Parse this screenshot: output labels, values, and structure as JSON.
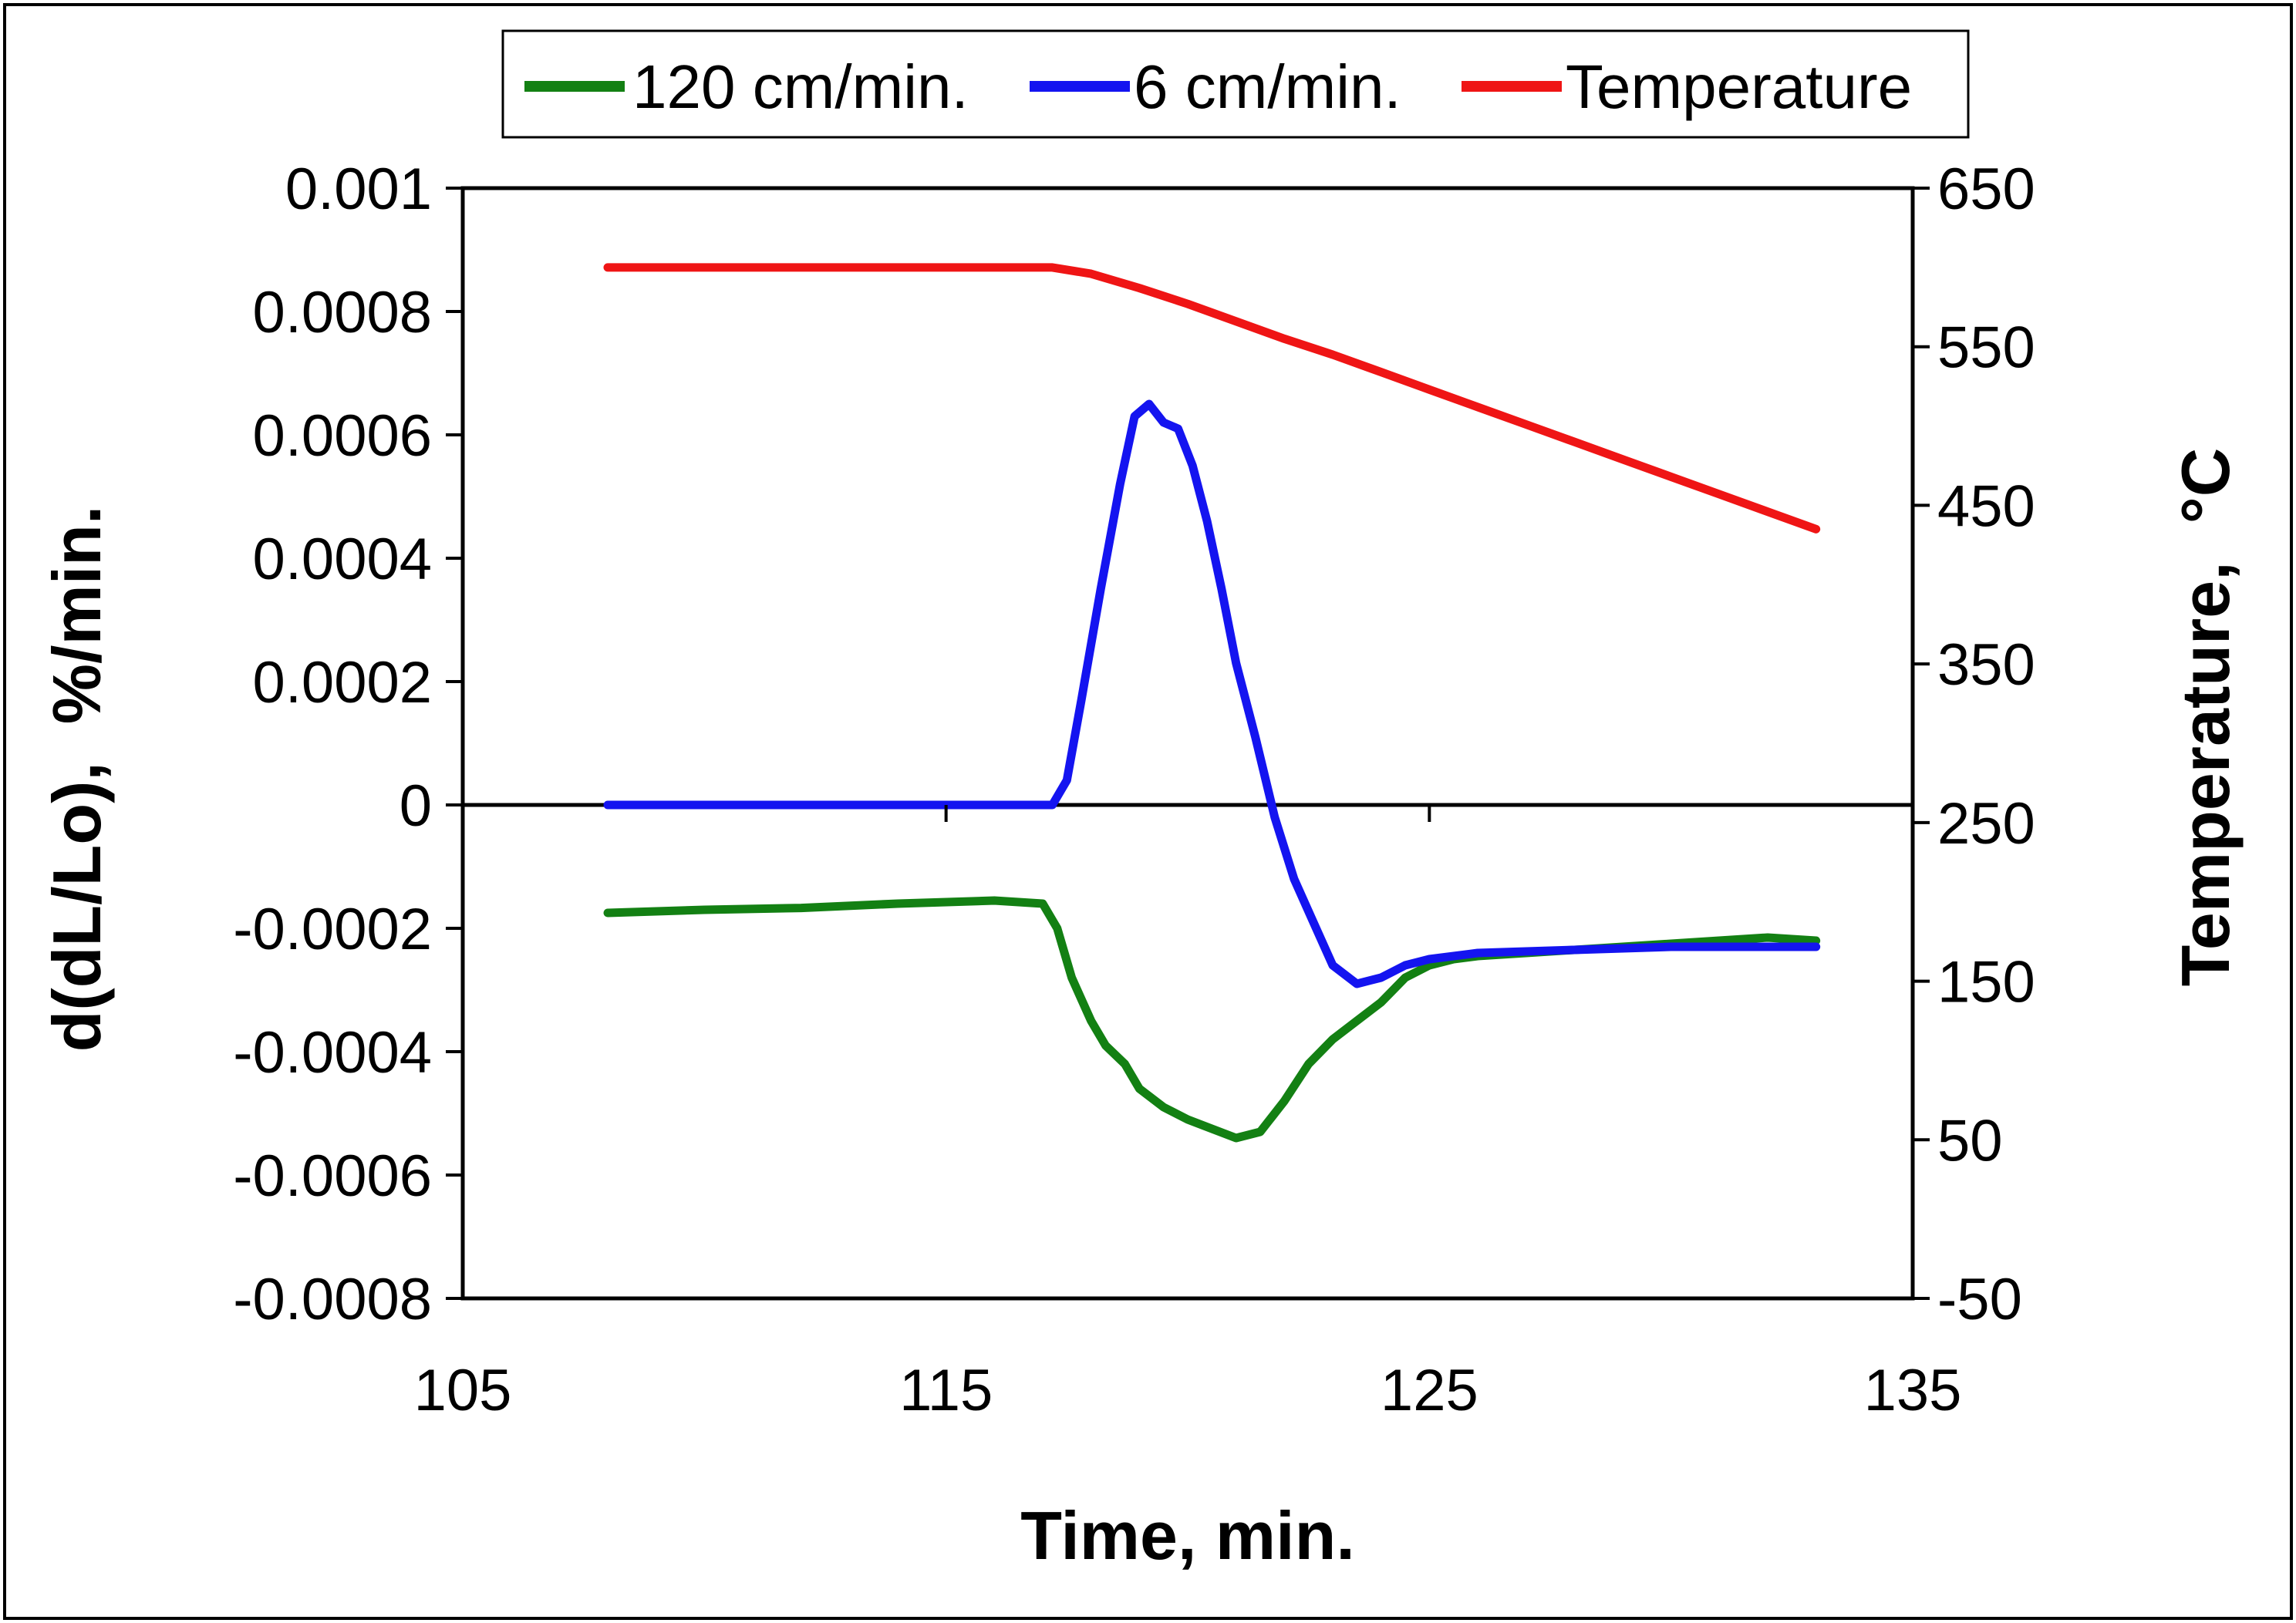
{
  "chart_data": {
    "type": "line",
    "xlabel": "Time, min.",
    "ylabel": "d(dL/Lo),  %/min.",
    "y2label": "Temperature,  °C",
    "xlim": [
      105,
      135
    ],
    "ylim": [
      -0.0008,
      0.001
    ],
    "y2lim": [
      -50,
      650
    ],
    "x_ticks": [
      "105",
      "115",
      "125",
      "135"
    ],
    "y_ticks": [
      "-0.0008",
      "-0.0006",
      "-0.0004",
      "-0.0002",
      "0",
      "0.0002",
      "0.0004",
      "0.0006",
      "0.0008",
      "0.001"
    ],
    "y2_ticks": [
      "-50",
      "50",
      "150",
      "250",
      "350",
      "450",
      "550",
      "650"
    ],
    "legend_position": "top-center",
    "series": [
      {
        "name": "120 cm/min.",
        "color": "#138013",
        "axis": "left",
        "x": [
          108,
          110,
          112,
          114,
          116,
          117,
          117.3,
          117.6,
          118,
          118.3,
          118.7,
          119,
          119.5,
          120,
          120.5,
          121,
          121.5,
          122,
          122.5,
          123,
          123.5,
          124,
          124.5,
          125,
          125.5,
          126,
          127,
          128,
          130,
          132,
          133
        ],
        "y": [
          -0.000175,
          -0.00017,
          -0.000167,
          -0.00016,
          -0.000155,
          -0.00016,
          -0.0002,
          -0.00028,
          -0.00035,
          -0.00039,
          -0.00042,
          -0.00046,
          -0.00049,
          -0.00051,
          -0.000525,
          -0.00054,
          -0.00053,
          -0.00048,
          -0.00042,
          -0.00038,
          -0.00035,
          -0.00032,
          -0.00028,
          -0.00026,
          -0.00025,
          -0.000245,
          -0.00024,
          -0.000235,
          -0.000225,
          -0.000215,
          -0.00022
        ]
      },
      {
        "name": "6 cm/min.",
        "color": "#1414f0",
        "axis": "left",
        "x": [
          108,
          112,
          116,
          117.2,
          117.5,
          117.8,
          118.2,
          118.6,
          118.9,
          119.2,
          119.5,
          119.8,
          120.1,
          120.4,
          120.7,
          121,
          121.4,
          121.8,
          122.2,
          122.6,
          123,
          123.5,
          124,
          124.5,
          125,
          126,
          128,
          130,
          133
        ],
        "y": [
          0,
          0,
          0,
          0,
          4e-05,
          0.00017,
          0.00035,
          0.00052,
          0.00063,
          0.00065,
          0.00062,
          0.00061,
          0.00055,
          0.00046,
          0.00035,
          0.00023,
          0.00011,
          -2e-05,
          -0.00012,
          -0.00019,
          -0.00026,
          -0.00029,
          -0.00028,
          -0.00026,
          -0.00025,
          -0.00024,
          -0.000235,
          -0.00023,
          -0.00023
        ]
      },
      {
        "name": "Temperature",
        "color": "#ef1515",
        "axis": "right",
        "x": [
          108,
          117.2,
          118,
          119,
          120,
          121,
          122,
          123,
          124,
          125,
          126,
          127,
          128,
          129,
          130,
          131,
          132,
          133
        ],
        "y": [
          600,
          600,
          596,
          587,
          577,
          566,
          555,
          545,
          534,
          523,
          512,
          501,
          490,
          479,
          468,
          457,
          446,
          435
        ]
      }
    ]
  }
}
